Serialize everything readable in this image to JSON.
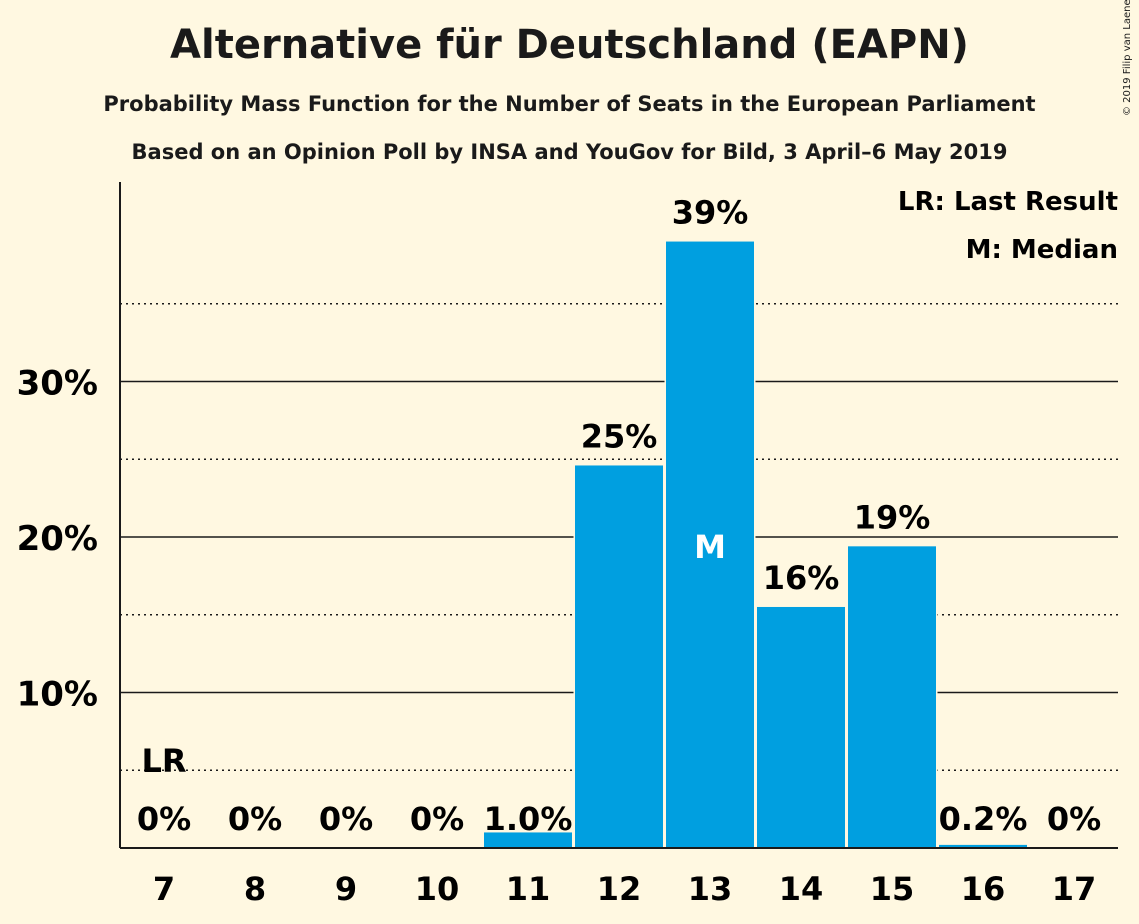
{
  "title": "Alternative für Deutschland (EAPN)",
  "subtitle1": "Probability Mass Function for the Number of Seats in the European Parliament",
  "subtitle2": "Based on an Opinion Poll by INSA and YouGov for Bild, 3 April–6 May 2019",
  "copyright": "© 2019 Filip van Laenen",
  "legend": {
    "last_result": "LR: Last Result",
    "median": "M: Median"
  },
  "colors": {
    "bar": "#009fe0",
    "background": "#fff8e1"
  },
  "chart_data": {
    "type": "bar",
    "categories": [
      "7",
      "8",
      "9",
      "10",
      "11",
      "12",
      "13",
      "14",
      "15",
      "16",
      "17"
    ],
    "values": [
      0,
      0,
      0,
      0,
      1.0,
      24.6,
      39.0,
      15.5,
      19.4,
      0.2,
      0
    ],
    "data_labels": [
      "0%",
      "0%",
      "0%",
      "0%",
      "1.0%",
      "25%",
      "39%",
      "16%",
      "19%",
      "0.2%",
      "0%"
    ],
    "ylim": [
      0,
      43
    ],
    "y_ticks": [
      10,
      20,
      30
    ],
    "y_tick_labels": [
      "10%",
      "20%",
      "30%"
    ],
    "minor_gridlines": [
      5,
      15,
      25,
      35
    ],
    "last_result_category": "7",
    "last_result_label": "LR",
    "median_category": "13",
    "median_label": "M"
  }
}
